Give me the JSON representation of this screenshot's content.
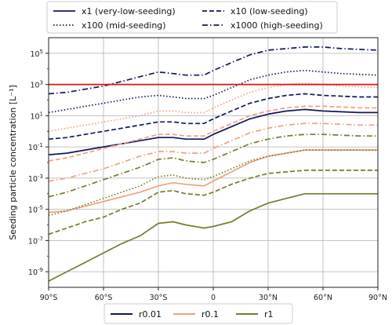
{
  "chart_data": {
    "type": "line",
    "title": "",
    "xlabel": "",
    "ylabel": "Seeding particle concentration [L⁻¹]",
    "x_ticks": [
      {
        "v": -90,
        "label": "90°S"
      },
      {
        "v": -60,
        "label": "60°S"
      },
      {
        "v": -30,
        "label": "30°S"
      },
      {
        "v": 0,
        "label": "0"
      },
      {
        "v": 30,
        "label": "30°N"
      },
      {
        "v": 60,
        "label": "60°N"
      },
      {
        "v": 90,
        "label": "90°N"
      }
    ],
    "y_ticks": [
      {
        "exp": -9,
        "base": "10",
        "sup": "-9"
      },
      {
        "exp": -7,
        "base": "10",
        "sup": "-7"
      },
      {
        "exp": -5,
        "base": "10",
        "sup": "-5"
      },
      {
        "exp": -3,
        "base": "10",
        "sup": "-3"
      },
      {
        "exp": -1,
        "base": "10",
        "sup": "-1"
      },
      {
        "exp": 1,
        "base": "10",
        "sup": "1"
      },
      {
        "exp": 3,
        "base": "10",
        "sup": "3"
      },
      {
        "exp": 5,
        "base": "10",
        "sup": "5"
      }
    ],
    "xlim": [
      -90,
      90
    ],
    "ylim_log10": [
      -10,
      6
    ],
    "y_scale": "log",
    "grid": true,
    "threshold": {
      "value": 1000,
      "color": "#e01010"
    },
    "legend_styles": [
      {
        "label": "x1 (very-low-seeding)",
        "dash": "solid"
      },
      {
        "label": "x10 (low-seeding)",
        "dash": "dashed"
      },
      {
        "label": "x100 (mid-seeding)",
        "dash": "dotted"
      },
      {
        "label": "x1000 (high-seeding)",
        "dash": "dashdot"
      }
    ],
    "legend_radius": [
      {
        "label": "r0.01",
        "color": "#0d1a5c"
      },
      {
        "label": "r0.1",
        "color": "#f2a07b"
      },
      {
        "label": "r1",
        "color": "#7a7a2e"
      }
    ],
    "x": [
      -90,
      -80,
      -70,
      -60,
      -50,
      -40,
      -30,
      -22,
      -15,
      -5,
      0,
      10,
      20,
      30,
      40,
      50,
      60,
      70,
      80,
      90
    ],
    "series": [
      {
        "radius": "r0.01",
        "seeding": "x1",
        "dash": "solid",
        "color": "#0d1a5c",
        "log10_values": [
          -1.5,
          -1.4,
          -1.2,
          -1.0,
          -0.8,
          -0.6,
          -0.4,
          -0.4,
          -0.5,
          -0.5,
          -0.2,
          0.3,
          0.8,
          1.1,
          1.3,
          1.4,
          1.3,
          1.25,
          1.2,
          1.2
        ]
      },
      {
        "radius": "r0.01",
        "seeding": "x10",
        "dash": "dashed",
        "color": "#0d1a5c",
        "log10_values": [
          -0.5,
          -0.4,
          -0.2,
          0.0,
          0.2,
          0.4,
          0.6,
          0.6,
          0.5,
          0.5,
          0.8,
          1.3,
          1.8,
          2.1,
          2.3,
          2.4,
          2.3,
          2.25,
          2.2,
          2.2
        ]
      },
      {
        "radius": "r0.01",
        "seeding": "x100",
        "dash": "dotted",
        "color": "#0d1a5c",
        "log10_values": [
          1.2,
          1.4,
          1.6,
          1.8,
          2.0,
          2.2,
          2.3,
          2.2,
          2.1,
          2.1,
          2.3,
          2.8,
          3.3,
          3.6,
          3.8,
          3.9,
          3.8,
          3.7,
          3.65,
          3.6
        ]
      },
      {
        "radius": "r0.01",
        "seeding": "x1000",
        "dash": "dashdot",
        "color": "#0d1a5c",
        "log10_values": [
          2.4,
          2.5,
          2.7,
          2.9,
          3.2,
          3.5,
          3.8,
          3.7,
          3.6,
          3.6,
          3.9,
          4.4,
          4.9,
          5.2,
          5.3,
          5.4,
          5.4,
          5.3,
          5.25,
          5.2
        ]
      },
      {
        "radius": "r0.1",
        "seeding": "x1",
        "dash": "solid",
        "color": "#f2a07b",
        "log10_values": [
          -5.2,
          -5.1,
          -4.8,
          -4.5,
          -4.2,
          -3.9,
          -3.5,
          -3.3,
          -3.4,
          -3.5,
          -3.2,
          -2.6,
          -2.0,
          -1.6,
          -1.4,
          -1.2,
          -1.2,
          -1.2,
          -1.2,
          -1.2
        ]
      },
      {
        "radius": "r0.1",
        "seeding": "x10",
        "dash": "dashed",
        "color": "#f2a07b",
        "log10_values": [
          -1.9,
          -1.7,
          -1.4,
          -1.1,
          -0.8,
          -0.5,
          -0.2,
          -0.2,
          -0.3,
          -0.3,
          0.0,
          0.5,
          1.0,
          1.3,
          1.5,
          1.6,
          1.6,
          1.55,
          1.5,
          1.5
        ]
      },
      {
        "radius": "r0.1",
        "seeding": "x100",
        "dash": "dotted",
        "color": "#f2a07b",
        "log10_values": [
          0.0,
          0.2,
          0.4,
          0.6,
          0.8,
          1.0,
          1.3,
          1.3,
          1.2,
          1.2,
          1.5,
          2.0,
          2.5,
          2.8,
          3.0,
          3.1,
          3.0,
          2.9,
          2.85,
          2.8
        ]
      },
      {
        "radius": "r0.1",
        "seeding": "x1000",
        "dash": "dashdot",
        "color": "#f2a07b",
        "log10_values": [
          -3.2,
          -3.0,
          -2.7,
          -2.4,
          -2.0,
          -1.6,
          -1.3,
          -1.3,
          -1.4,
          -1.4,
          -1.1,
          -0.6,
          -0.1,
          0.2,
          0.4,
          0.5,
          0.5,
          0.45,
          0.4,
          0.4
        ]
      },
      {
        "radius": "r1",
        "seeding": "x1",
        "dash": "solid",
        "color": "#7a7a2e",
        "log10_values": [
          -9.6,
          -9.0,
          -8.4,
          -7.8,
          -7.2,
          -6.7,
          -5.9,
          -5.8,
          -6.0,
          -6.2,
          -6.1,
          -5.8,
          -5.1,
          -4.6,
          -4.3,
          -4.0,
          -4.0,
          -4.0,
          -4.0,
          -4.0
        ]
      },
      {
        "radius": "r1",
        "seeding": "x10",
        "dash": "dashed",
        "color": "#7a7a2e",
        "log10_values": [
          -6.6,
          -6.2,
          -5.8,
          -5.5,
          -5.0,
          -4.6,
          -3.9,
          -3.8,
          -4.0,
          -4.1,
          -3.9,
          -3.4,
          -3.0,
          -2.7,
          -2.6,
          -2.5,
          -2.5,
          -2.5,
          -2.5,
          -2.5
        ]
      },
      {
        "radius": "r1",
        "seeding": "x100",
        "dash": "dotted",
        "color": "#7a7a2e",
        "log10_values": [
          -5.4,
          -5.1,
          -4.7,
          -4.3,
          -3.9,
          -3.5,
          -2.9,
          -2.8,
          -3.0,
          -3.1,
          -2.9,
          -2.4,
          -1.9,
          -1.6,
          -1.4,
          -1.2,
          -1.2,
          -1.2,
          -1.2,
          -1.2
        ]
      },
      {
        "radius": "r1",
        "seeding": "x1000",
        "dash": "dashdot",
        "color": "#7a7a2e",
        "log10_values": [
          -4.2,
          -3.9,
          -3.5,
          -3.1,
          -2.7,
          -2.3,
          -1.8,
          -1.7,
          -1.9,
          -2.0,
          -1.8,
          -1.3,
          -0.8,
          -0.5,
          -0.3,
          -0.2,
          -0.2,
          -0.25,
          -0.3,
          -0.3
        ]
      }
    ]
  }
}
